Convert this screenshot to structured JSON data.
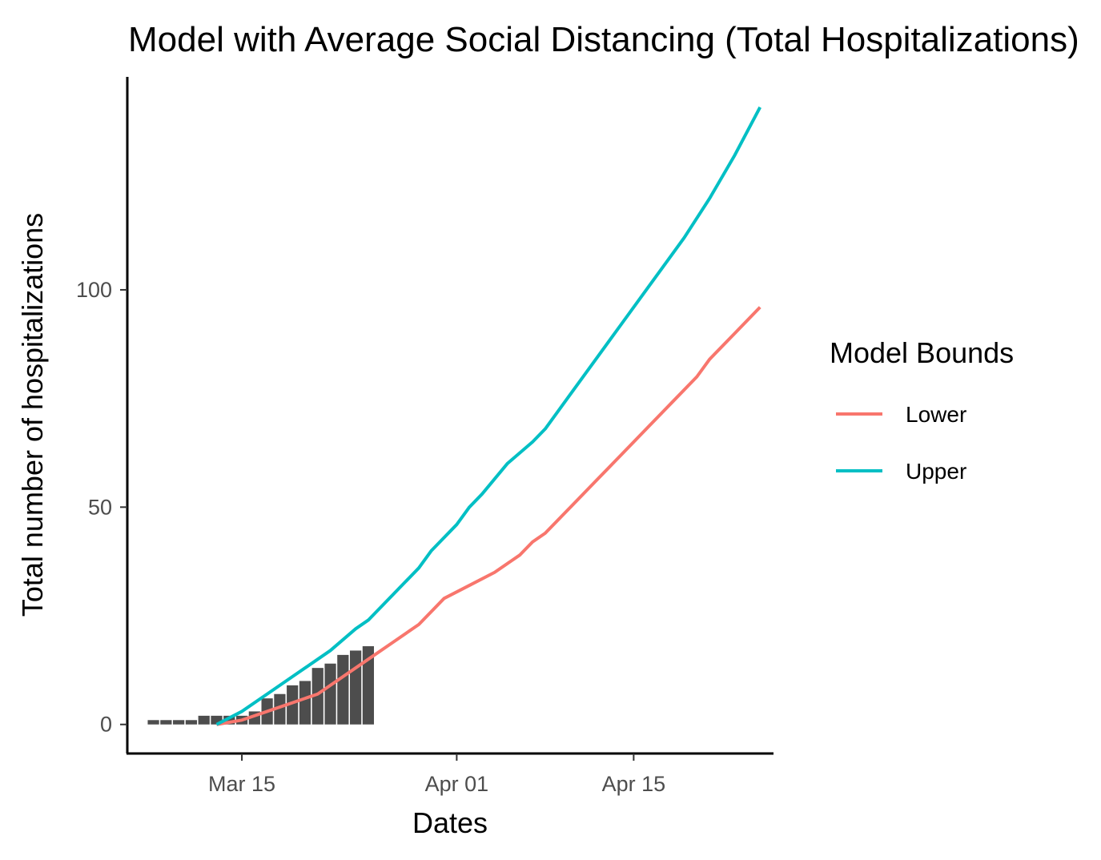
{
  "chart_data": {
    "type": "bar+line",
    "title": "Model with Average Social Distancing (Total Hospitalizations)",
    "xlabel": "Dates",
    "ylabel": "Total number of hospitalizations",
    "x_range": [
      "2020-03-06",
      "2020-04-26"
    ],
    "ylim": [
      -6.5,
      149
    ],
    "x_ticks": [
      {
        "date": "2020-03-15",
        "label": "Mar 15"
      },
      {
        "date": "2020-04-01",
        "label": "Apr 01"
      },
      {
        "date": "2020-04-15",
        "label": "Apr 15"
      }
    ],
    "y_ticks": [
      0,
      50,
      100
    ],
    "grid": false,
    "legend": {
      "title": "Model Bounds",
      "position": "right",
      "entries": [
        "Lower",
        "Upper"
      ]
    },
    "bars": {
      "color": "#4d4d4d",
      "points": [
        {
          "date": "2020-03-08",
          "value": 1
        },
        {
          "date": "2020-03-09",
          "value": 1
        },
        {
          "date": "2020-03-10",
          "value": 1
        },
        {
          "date": "2020-03-11",
          "value": 1
        },
        {
          "date": "2020-03-12",
          "value": 2
        },
        {
          "date": "2020-03-13",
          "value": 2
        },
        {
          "date": "2020-03-14",
          "value": 2
        },
        {
          "date": "2020-03-15",
          "value": 2
        },
        {
          "date": "2020-03-16",
          "value": 3
        },
        {
          "date": "2020-03-17",
          "value": 6
        },
        {
          "date": "2020-03-18",
          "value": 7
        },
        {
          "date": "2020-03-19",
          "value": 9
        },
        {
          "date": "2020-03-20",
          "value": 10
        },
        {
          "date": "2020-03-21",
          "value": 13
        },
        {
          "date": "2020-03-22",
          "value": 14
        },
        {
          "date": "2020-03-23",
          "value": 16
        },
        {
          "date": "2020-03-24",
          "value": 17
        },
        {
          "date": "2020-03-25",
          "value": 18
        }
      ]
    },
    "series": [
      {
        "name": "Lower",
        "color": "#f8766d",
        "points": [
          {
            "date": "2020-03-13",
            "value": 0
          },
          {
            "date": "2020-03-15",
            "value": 1
          },
          {
            "date": "2020-03-17",
            "value": 3
          },
          {
            "date": "2020-03-19",
            "value": 5
          },
          {
            "date": "2020-03-21",
            "value": 7
          },
          {
            "date": "2020-03-23",
            "value": 11
          },
          {
            "date": "2020-03-25",
            "value": 15
          },
          {
            "date": "2020-03-27",
            "value": 19
          },
          {
            "date": "2020-03-29",
            "value": 23
          },
          {
            "date": "2020-03-31",
            "value": 29
          },
          {
            "date": "2020-04-02",
            "value": 32
          },
          {
            "date": "2020-04-04",
            "value": 35
          },
          {
            "date": "2020-04-06",
            "value": 39
          },
          {
            "date": "2020-04-07",
            "value": 42
          },
          {
            "date": "2020-04-08",
            "value": 44
          },
          {
            "date": "2020-04-10",
            "value": 50
          },
          {
            "date": "2020-04-12",
            "value": 56
          },
          {
            "date": "2020-04-14",
            "value": 62
          },
          {
            "date": "2020-04-16",
            "value": 68
          },
          {
            "date": "2020-04-18",
            "value": 74
          },
          {
            "date": "2020-04-20",
            "value": 80
          },
          {
            "date": "2020-04-21",
            "value": 84
          },
          {
            "date": "2020-04-23",
            "value": 90
          },
          {
            "date": "2020-04-25",
            "value": 96
          }
        ]
      },
      {
        "name": "Upper",
        "color": "#00bfc4",
        "points": [
          {
            "date": "2020-03-13",
            "value": 0
          },
          {
            "date": "2020-03-15",
            "value": 3
          },
          {
            "date": "2020-03-17",
            "value": 7
          },
          {
            "date": "2020-03-19",
            "value": 11
          },
          {
            "date": "2020-03-21",
            "value": 15
          },
          {
            "date": "2020-03-22",
            "value": 17
          },
          {
            "date": "2020-03-24",
            "value": 22
          },
          {
            "date": "2020-03-25",
            "value": 24
          },
          {
            "date": "2020-03-27",
            "value": 30
          },
          {
            "date": "2020-03-29",
            "value": 36
          },
          {
            "date": "2020-03-30",
            "value": 40
          },
          {
            "date": "2020-04-01",
            "value": 46
          },
          {
            "date": "2020-04-02",
            "value": 50
          },
          {
            "date": "2020-04-03",
            "value": 53
          },
          {
            "date": "2020-04-05",
            "value": 60
          },
          {
            "date": "2020-04-07",
            "value": 65
          },
          {
            "date": "2020-04-08",
            "value": 68
          },
          {
            "date": "2020-04-10",
            "value": 76
          },
          {
            "date": "2020-04-12",
            "value": 84
          },
          {
            "date": "2020-04-14",
            "value": 92
          },
          {
            "date": "2020-04-16",
            "value": 100
          },
          {
            "date": "2020-04-18",
            "value": 108
          },
          {
            "date": "2020-04-19",
            "value": 112
          },
          {
            "date": "2020-04-21",
            "value": 121
          },
          {
            "date": "2020-04-23",
            "value": 131
          },
          {
            "date": "2020-04-25",
            "value": 142
          }
        ]
      }
    ]
  }
}
